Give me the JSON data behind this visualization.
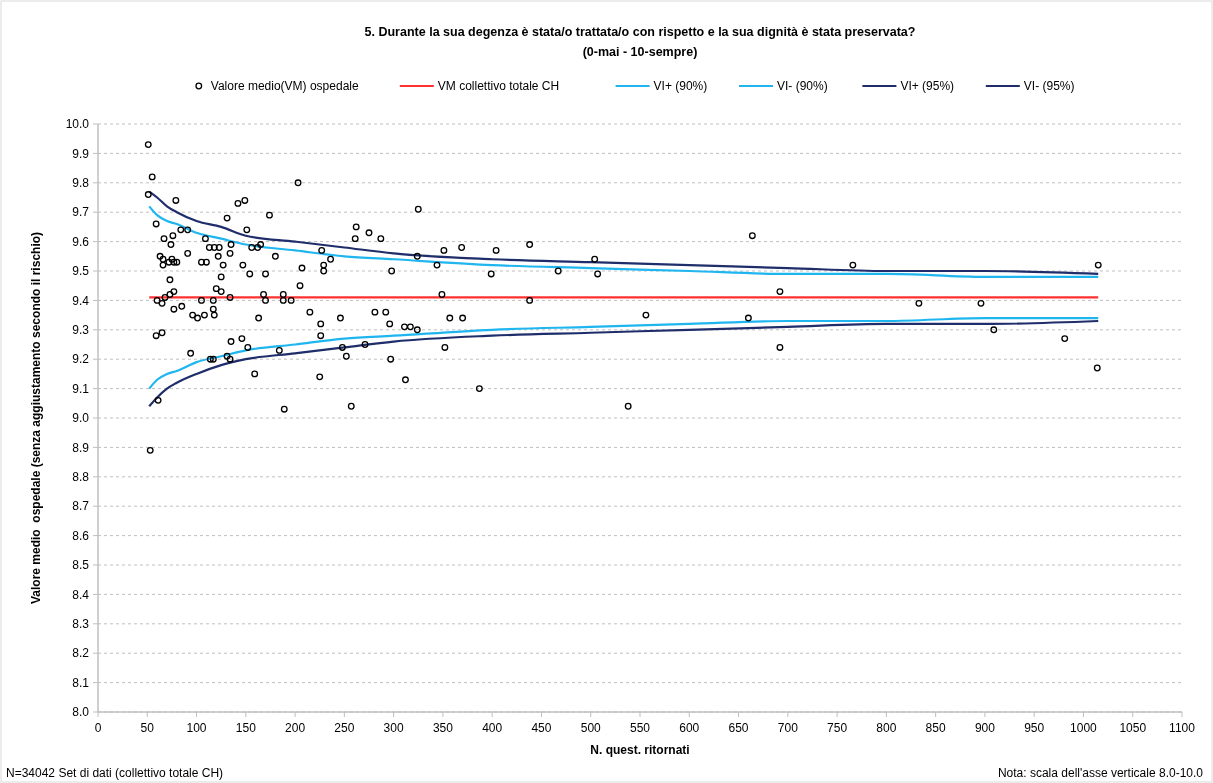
{
  "chart_data": {
    "type": "scatter",
    "title": "5. Durante la sua degenza è stata/o trattata/o con rispetto e la sua dignità è stata preservata?",
    "subtitle": "(0-mai - 10-sempre)",
    "xlabel": "N. quest. ritornati",
    "ylabel": "Valore medio  ospedale (senza aggiustamento secondo il rischio)",
    "annotations": [
      "N=34042 Set di dati (collettivo totale CH)",
      "Nota: scala dell'asse verticale 8.0-10.0"
    ],
    "xlim": [
      0,
      1100
    ],
    "xticks": [
      0,
      50,
      100,
      150,
      200,
      250,
      300,
      350,
      400,
      450,
      500,
      550,
      600,
      650,
      700,
      750,
      800,
      850,
      900,
      950,
      1000,
      1050,
      1100
    ],
    "ylim": [
      8,
      10
    ],
    "yticks": [
      {
        "value": 8,
        "label": "8.0"
      },
      8.1,
      8.2,
      8.3,
      8.4,
      8.5,
      8.6,
      8.7,
      8.8,
      8.9,
      {
        "value": 9,
        "label": "9.0"
      },
      9.1,
      9.2,
      9.3,
      9.4,
      9.5,
      9.6,
      9.7,
      9.8,
      9.9,
      {
        "value": 10,
        "label": "10.0"
      }
    ],
    "grid": "y",
    "legend": "top",
    "series": [
      {
        "name": "Valore medio(VM) ospedale",
        "marker": "circle",
        "color": "#000000",
        "x": [
          51,
          55,
          51,
          79,
          59,
          67,
          76,
          84,
          91,
          74,
          63,
          66,
          66,
          75,
          72,
          77,
          80,
          91,
          73,
          77,
          73,
          68,
          60,
          65,
          77,
          85,
          59,
          65,
          94,
          61,
          53,
          109,
          113,
          118,
          123,
          122,
          135,
          134,
          131,
          142,
          149,
          151,
          156,
          162,
          165,
          174,
          180,
          105,
          110,
          127,
          125,
          120,
          125,
          147,
          154,
          170,
          168,
          170,
          105,
          117,
          134,
          96,
          101,
          108,
          117,
          118,
          163,
          135,
          146,
          152,
          114,
          117,
          131,
          134,
          159,
          203,
          207,
          205,
          188,
          188,
          196,
          215,
          226,
          226,
          225,
          184,
          189,
          227,
          229,
          229,
          236,
          246,
          248,
          252,
          257,
          261,
          262,
          275,
          271,
          287,
          281,
          292,
          296,
          298,
          297,
          311,
          317,
          324,
          312,
          325,
          324,
          344,
          351,
          369,
          349,
          357,
          370,
          352,
          404,
          438,
          399,
          467,
          504,
          507,
          438,
          556,
          387,
          538,
          664,
          692,
          660,
          692,
          766,
          833,
          896,
          909,
          981,
          1014,
          1015
        ],
        "values": [
          9.93,
          9.82,
          9.76,
          9.74,
          9.66,
          9.61,
          9.62,
          9.64,
          9.64,
          9.59,
          9.55,
          9.54,
          9.52,
          9.54,
          9.53,
          9.53,
          9.53,
          9.56,
          9.47,
          9.43,
          9.42,
          9.41,
          9.4,
          9.39,
          9.37,
          9.38,
          9.28,
          9.29,
          9.22,
          9.06,
          8.89,
          9.61,
          9.58,
          9.58,
          9.58,
          9.55,
          9.59,
          9.56,
          9.68,
          9.73,
          9.74,
          9.64,
          9.58,
          9.58,
          9.59,
          9.69,
          9.55,
          9.53,
          9.53,
          9.52,
          9.48,
          9.44,
          9.43,
          9.52,
          9.49,
          9.49,
          9.42,
          9.4,
          9.4,
          9.4,
          9.41,
          9.35,
          9.34,
          9.35,
          9.37,
          9.35,
          9.34,
          9.26,
          9.27,
          9.24,
          9.2,
          9.2,
          9.21,
          9.2,
          9.15,
          9.8,
          9.51,
          9.45,
          9.42,
          9.4,
          9.4,
          9.36,
          9.32,
          9.28,
          9.14,
          9.23,
          9.03,
          9.57,
          9.52,
          9.5,
          9.54,
          9.34,
          9.24,
          9.21,
          9.04,
          9.61,
          9.65,
          9.63,
          9.25,
          9.61,
          9.36,
          9.36,
          9.32,
          9.5,
          9.2,
          9.31,
          9.31,
          9.3,
          9.13,
          9.71,
          9.55,
          9.52,
          9.57,
          9.58,
          9.42,
          9.34,
          9.34,
          9.24,
          9.57,
          9.59,
          9.49,
          9.5,
          9.54,
          9.49,
          9.4,
          9.35,
          9.1,
          9.04,
          9.62,
          9.43,
          9.34,
          9.24,
          9.52,
          9.39,
          9.39,
          9.3,
          9.27,
          9.17,
          9.52
        ]
      },
      {
        "name": "VM collettivo totale CH",
        "type": "line",
        "marker": "none",
        "color": "#ff3030",
        "x": [
          52,
          1015
        ],
        "values": [
          9.41,
          9.41
        ]
      },
      {
        "name": "VI+ (90%)",
        "type": "line",
        "marker": "none",
        "color": "#1fb6f0",
        "x": [
          52,
          60,
          70,
          80,
          100,
          125,
          150,
          200,
          250,
          300,
          400,
          500,
          600,
          700,
          800,
          900,
          1015
        ],
        "values": [
          9.72,
          9.69,
          9.67,
          9.66,
          9.63,
          9.61,
          9.59,
          9.57,
          9.55,
          9.54,
          9.52,
          9.51,
          9.5,
          9.49,
          9.49,
          9.48,
          9.48
        ]
      },
      {
        "name": "VI- (90%)",
        "type": "line",
        "marker": "none",
        "color": "#1fb6f0",
        "x": [
          52,
          60,
          70,
          80,
          100,
          125,
          150,
          200,
          250,
          300,
          400,
          500,
          600,
          700,
          800,
          900,
          1015
        ],
        "values": [
          9.1,
          9.13,
          9.15,
          9.16,
          9.19,
          9.21,
          9.23,
          9.25,
          9.27,
          9.28,
          9.3,
          9.31,
          9.32,
          9.33,
          9.33,
          9.34,
          9.34
        ]
      },
      {
        "name": "VI+ (95%)",
        "type": "line",
        "marker": "none",
        "color": "#1f2d6b",
        "x": [
          52,
          60,
          70,
          80,
          100,
          125,
          150,
          200,
          250,
          300,
          400,
          500,
          600,
          700,
          800,
          900,
          1015
        ],
        "values": [
          9.77,
          9.75,
          9.72,
          9.7,
          9.67,
          9.65,
          9.62,
          9.6,
          9.58,
          9.56,
          9.54,
          9.53,
          9.52,
          9.51,
          9.5,
          9.5,
          9.49
        ]
      },
      {
        "name": "VI- (95%)",
        "type": "line",
        "marker": "none",
        "color": "#1f2d6b",
        "x": [
          52,
          60,
          70,
          80,
          100,
          125,
          150,
          200,
          250,
          300,
          400,
          500,
          600,
          700,
          800,
          900,
          1015
        ],
        "values": [
          9.04,
          9.07,
          9.1,
          9.12,
          9.15,
          9.18,
          9.2,
          9.22,
          9.24,
          9.26,
          9.28,
          9.29,
          9.3,
          9.31,
          9.32,
          9.32,
          9.33
        ]
      }
    ]
  }
}
